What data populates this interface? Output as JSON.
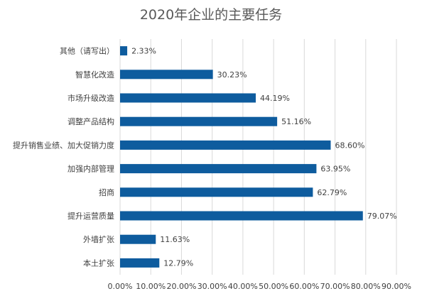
{
  "chart_data": {
    "type": "bar",
    "orientation": "horizontal",
    "title": "2020年企业的主要任务",
    "xlabel": "",
    "ylabel": "",
    "categories": [
      "其他（请写出）",
      "智慧化改造",
      "市场升级改造",
      "调整产品结构",
      "提升销售业绩、加大促销力度",
      "加强内部管理",
      "招商",
      "提升运营质量",
      "外墙扩张",
      "本土扩张"
    ],
    "values": [
      2.33,
      30.23,
      44.19,
      51.16,
      68.6,
      63.95,
      62.79,
      79.07,
      11.63,
      12.79
    ],
    "value_labels": [
      "2.33%",
      "30.23%",
      "44.19%",
      "51.16%",
      "68.60%",
      "63.95%",
      "62.79%",
      "79.07%",
      "11.63%",
      "12.79%"
    ],
    "xlim": [
      0,
      90
    ],
    "x_ticks": [
      0,
      10,
      20,
      30,
      40,
      50,
      60,
      70,
      80,
      90
    ],
    "x_tick_labels": [
      "0.00%",
      "10.00%",
      "20.00%",
      "30.00%",
      "40.00%",
      "50.00%",
      "60.00%",
      "70.00%",
      "80.00%",
      "90.00%"
    ],
    "grid": true,
    "legend": "none",
    "bar_color": "#0e5c9e",
    "grid_color": "#d9d9d9",
    "text_color": "#404040",
    "title_color": "#595959"
  }
}
